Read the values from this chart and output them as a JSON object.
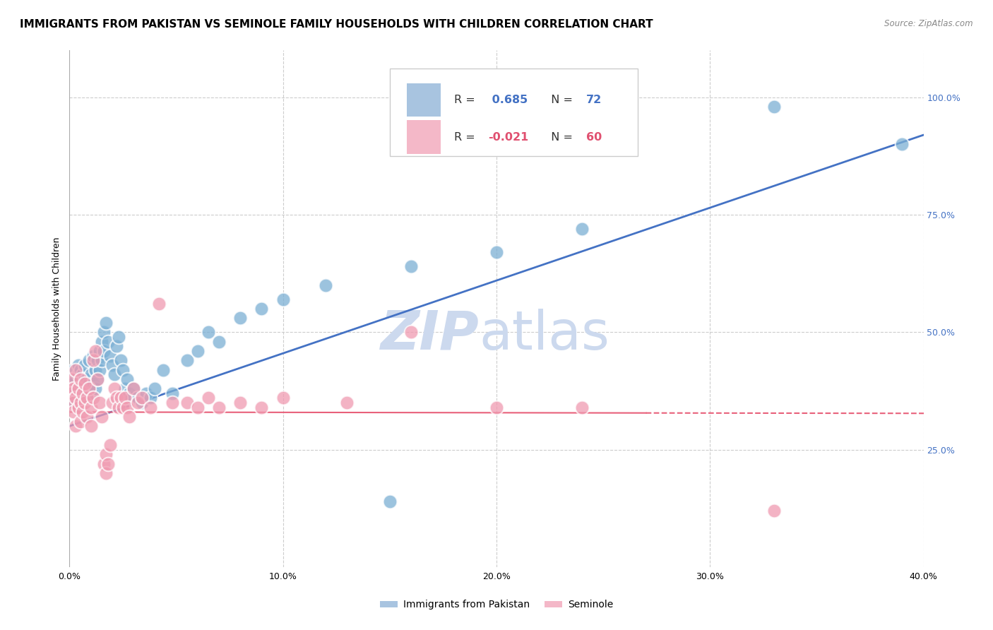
{
  "title": "IMMIGRANTS FROM PAKISTAN VS SEMINOLE FAMILY HOUSEHOLDS WITH CHILDREN CORRELATION CHART",
  "source": "Source: ZipAtlas.com",
  "xlabel_ticks": [
    "0.0%",
    "10.0%",
    "20.0%",
    "30.0%",
    "40.0%"
  ],
  "xlabel_tick_vals": [
    0.0,
    0.1,
    0.2,
    0.3,
    0.4
  ],
  "ylabel": "Family Households with Children",
  "ylabel_right_ticks": [
    "100.0%",
    "75.0%",
    "50.0%",
    "25.0%"
  ],
  "ylabel_right_tick_vals": [
    1.0,
    0.75,
    0.5,
    0.25
  ],
  "xmin": 0.0,
  "xmax": 0.4,
  "ymin": 0.0,
  "ymax": 1.1,
  "blue_scatter": [
    [
      0.001,
      0.38
    ],
    [
      0.001,
      0.4
    ],
    [
      0.001,
      0.35
    ],
    [
      0.002,
      0.39
    ],
    [
      0.002,
      0.42
    ],
    [
      0.002,
      0.37
    ],
    [
      0.003,
      0.4
    ],
    [
      0.003,
      0.38
    ],
    [
      0.003,
      0.36
    ],
    [
      0.004,
      0.41
    ],
    [
      0.004,
      0.43
    ],
    [
      0.004,
      0.38
    ],
    [
      0.005,
      0.4
    ],
    [
      0.005,
      0.36
    ],
    [
      0.005,
      0.42
    ],
    [
      0.006,
      0.39
    ],
    [
      0.006,
      0.41
    ],
    [
      0.006,
      0.37
    ],
    [
      0.007,
      0.43
    ],
    [
      0.007,
      0.38
    ],
    [
      0.008,
      0.4
    ],
    [
      0.008,
      0.36
    ],
    [
      0.009,
      0.39
    ],
    [
      0.009,
      0.44
    ],
    [
      0.01,
      0.41
    ],
    [
      0.01,
      0.37
    ],
    [
      0.011,
      0.45
    ],
    [
      0.011,
      0.39
    ],
    [
      0.012,
      0.42
    ],
    [
      0.012,
      0.38
    ],
    [
      0.013,
      0.44
    ],
    [
      0.013,
      0.4
    ],
    [
      0.014,
      0.46
    ],
    [
      0.014,
      0.42
    ],
    [
      0.015,
      0.48
    ],
    [
      0.015,
      0.44
    ],
    [
      0.016,
      0.5
    ],
    [
      0.016,
      0.46
    ],
    [
      0.017,
      0.52
    ],
    [
      0.018,
      0.48
    ],
    [
      0.019,
      0.45
    ],
    [
      0.02,
      0.43
    ],
    [
      0.021,
      0.41
    ],
    [
      0.022,
      0.47
    ],
    [
      0.023,
      0.49
    ],
    [
      0.024,
      0.44
    ],
    [
      0.025,
      0.42
    ],
    [
      0.026,
      0.38
    ],
    [
      0.027,
      0.4
    ],
    [
      0.028,
      0.37
    ],
    [
      0.029,
      0.36
    ],
    [
      0.03,
      0.38
    ],
    [
      0.032,
      0.36
    ],
    [
      0.034,
      0.35
    ],
    [
      0.036,
      0.37
    ],
    [
      0.038,
      0.36
    ],
    [
      0.04,
      0.38
    ],
    [
      0.044,
      0.42
    ],
    [
      0.048,
      0.37
    ],
    [
      0.055,
      0.44
    ],
    [
      0.06,
      0.46
    ],
    [
      0.065,
      0.5
    ],
    [
      0.07,
      0.48
    ],
    [
      0.08,
      0.53
    ],
    [
      0.09,
      0.55
    ],
    [
      0.1,
      0.57
    ],
    [
      0.12,
      0.6
    ],
    [
      0.15,
      0.14
    ],
    [
      0.16,
      0.64
    ],
    [
      0.2,
      0.67
    ],
    [
      0.24,
      0.72
    ],
    [
      0.33,
      0.98
    ],
    [
      0.39,
      0.9
    ]
  ],
  "pink_scatter": [
    [
      0.001,
      0.4
    ],
    [
      0.001,
      0.37
    ],
    [
      0.002,
      0.35
    ],
    [
      0.002,
      0.38
    ],
    [
      0.002,
      0.33
    ],
    [
      0.003,
      0.42
    ],
    [
      0.003,
      0.36
    ],
    [
      0.003,
      0.3
    ],
    [
      0.004,
      0.38
    ],
    [
      0.004,
      0.34
    ],
    [
      0.005,
      0.4
    ],
    [
      0.005,
      0.35
    ],
    [
      0.005,
      0.31
    ],
    [
      0.006,
      0.37
    ],
    [
      0.006,
      0.33
    ],
    [
      0.007,
      0.39
    ],
    [
      0.007,
      0.35
    ],
    [
      0.008,
      0.36
    ],
    [
      0.008,
      0.32
    ],
    [
      0.009,
      0.38
    ],
    [
      0.01,
      0.34
    ],
    [
      0.01,
      0.3
    ],
    [
      0.011,
      0.44
    ],
    [
      0.011,
      0.36
    ],
    [
      0.012,
      0.46
    ],
    [
      0.013,
      0.4
    ],
    [
      0.014,
      0.35
    ],
    [
      0.015,
      0.32
    ],
    [
      0.016,
      0.22
    ],
    [
      0.017,
      0.2
    ],
    [
      0.017,
      0.24
    ],
    [
      0.018,
      0.22
    ],
    [
      0.019,
      0.26
    ],
    [
      0.02,
      0.35
    ],
    [
      0.021,
      0.38
    ],
    [
      0.022,
      0.36
    ],
    [
      0.023,
      0.34
    ],
    [
      0.024,
      0.36
    ],
    [
      0.025,
      0.34
    ],
    [
      0.026,
      0.36
    ],
    [
      0.027,
      0.34
    ],
    [
      0.028,
      0.32
    ],
    [
      0.03,
      0.38
    ],
    [
      0.032,
      0.35
    ],
    [
      0.034,
      0.36
    ],
    [
      0.038,
      0.34
    ],
    [
      0.042,
      0.56
    ],
    [
      0.048,
      0.35
    ],
    [
      0.055,
      0.35
    ],
    [
      0.06,
      0.34
    ],
    [
      0.065,
      0.36
    ],
    [
      0.07,
      0.34
    ],
    [
      0.08,
      0.35
    ],
    [
      0.09,
      0.34
    ],
    [
      0.1,
      0.36
    ],
    [
      0.13,
      0.35
    ],
    [
      0.16,
      0.5
    ],
    [
      0.2,
      0.34
    ],
    [
      0.24,
      0.34
    ],
    [
      0.33,
      0.12
    ]
  ],
  "blue_line": {
    "x": [
      0.0,
      0.4
    ],
    "y": [
      0.3,
      0.92
    ]
  },
  "pink_line": {
    "x": [
      0.0,
      0.74
    ],
    "y": [
      0.33,
      0.325
    ]
  },
  "scatter_color_blue": "#7bafd4",
  "scatter_color_pink": "#f09ab0",
  "line_color_blue": "#4472c4",
  "line_color_pink": "#e8607a",
  "background_color": "#ffffff",
  "grid_color": "#cccccc",
  "watermark_color": "#ccd9ee",
  "title_fontsize": 11,
  "axis_fontsize": 9,
  "legend_fontsize": 11
}
